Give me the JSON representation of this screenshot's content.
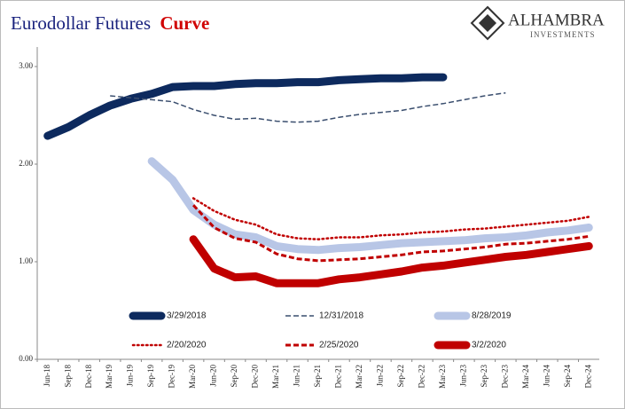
{
  "chart_data": {
    "type": "line",
    "title": "Eurodollar Futures",
    "title_highlight": "Curve",
    "logo": {
      "name": "ALHAMBRA",
      "subtitle": "INVESTMENTS"
    },
    "categories": [
      "Jun-18",
      "Sep-18",
      "Dec-18",
      "Mar-19",
      "Jun-19",
      "Sep-19",
      "Dec-19",
      "Mar-20",
      "Jun-20",
      "Sep-20",
      "Dec-20",
      "Mar-21",
      "Jun-21",
      "Sep-21",
      "Dec-21",
      "Mar-22",
      "Jun-22",
      "Sep-22",
      "Dec-22",
      "Mar-23",
      "Jun-23",
      "Sep-23",
      "Dec-23",
      "Mar-24",
      "Jun-24",
      "Sep-24",
      "Dec-24"
    ],
    "ylim": [
      0,
      3.2
    ],
    "yticks": [
      {
        "value": 0,
        "label": "0.00"
      },
      {
        "value": 1,
        "label": "1.00"
      },
      {
        "value": 2,
        "label": "2.00"
      },
      {
        "value": 3,
        "label": "3.00"
      }
    ],
    "series": [
      {
        "name": "3/29/2018",
        "color": "#0d2a5e",
        "width": 9,
        "style": "solid",
        "values": [
          2.29,
          2.38,
          2.5,
          2.6,
          2.67,
          2.72,
          2.79,
          2.8,
          2.8,
          2.82,
          2.83,
          2.83,
          2.84,
          2.84,
          2.86,
          2.87,
          2.88,
          2.88,
          2.89,
          2.89,
          null,
          null,
          null,
          null,
          null,
          null,
          null
        ]
      },
      {
        "name": "12/31/2018",
        "color": "#3a4e6e",
        "width": 1.5,
        "style": "dashed",
        "values": [
          null,
          null,
          null,
          2.7,
          2.68,
          2.66,
          2.64,
          2.56,
          2.5,
          2.46,
          2.47,
          2.44,
          2.43,
          2.44,
          2.48,
          2.51,
          2.53,
          2.55,
          2.59,
          2.62,
          2.66,
          2.7,
          2.73,
          null,
          null,
          null,
          null
        ]
      },
      {
        "name": "8/28/2019",
        "color": "#b8c6e6",
        "width": 9,
        "style": "solid",
        "values": [
          null,
          null,
          null,
          null,
          null,
          2.03,
          1.84,
          1.53,
          1.38,
          1.28,
          1.25,
          1.16,
          1.13,
          1.12,
          1.14,
          1.15,
          1.17,
          1.19,
          1.2,
          1.21,
          1.22,
          1.24,
          1.25,
          1.27,
          1.3,
          1.32,
          1.35
        ]
      },
      {
        "name": "2/20/2020",
        "color": "#c00000",
        "width": 2.5,
        "style": "dotted",
        "values": [
          null,
          null,
          null,
          null,
          null,
          null,
          null,
          1.65,
          1.52,
          1.43,
          1.38,
          1.28,
          1.24,
          1.23,
          1.25,
          1.25,
          1.27,
          1.28,
          1.3,
          1.31,
          1.33,
          1.34,
          1.36,
          1.38,
          1.4,
          1.42,
          1.46
        ]
      },
      {
        "name": "2/25/2020",
        "color": "#c00000",
        "width": 3,
        "style": "dashed",
        "values": [
          null,
          null,
          null,
          null,
          null,
          null,
          null,
          1.58,
          1.35,
          1.24,
          1.2,
          1.08,
          1.03,
          1.01,
          1.02,
          1.03,
          1.05,
          1.07,
          1.1,
          1.11,
          1.13,
          1.15,
          1.18,
          1.19,
          1.21,
          1.23,
          1.26
        ]
      },
      {
        "name": "3/2/2020",
        "color": "#c00000",
        "width": 9,
        "style": "solid",
        "values": [
          null,
          null,
          null,
          null,
          null,
          null,
          null,
          1.23,
          0.93,
          0.84,
          0.85,
          0.78,
          0.78,
          0.78,
          0.82,
          0.84,
          0.87,
          0.9,
          0.94,
          0.96,
          0.99,
          1.02,
          1.05,
          1.07,
          1.1,
          1.13,
          1.16
        ]
      }
    ]
  }
}
